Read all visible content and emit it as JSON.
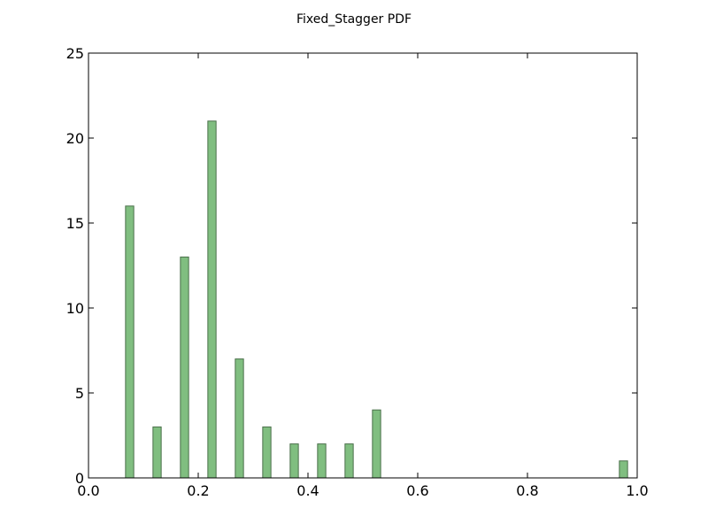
{
  "chart_data": {
    "type": "bar",
    "title": "Fixed_Stagger PDF",
    "xlabel": "",
    "ylabel": "",
    "xlim": [
      0.0,
      1.0
    ],
    "ylim": [
      0,
      25
    ],
    "x_ticks": [
      "0.0",
      "0.2",
      "0.4",
      "0.6",
      "0.8",
      "1.0"
    ],
    "x_tick_values": [
      0.0,
      0.2,
      0.4,
      0.6,
      0.8,
      1.0
    ],
    "y_ticks": [
      "0",
      "5",
      "10",
      "15",
      "20",
      "25"
    ],
    "y_tick_values": [
      0,
      5,
      10,
      15,
      20,
      25
    ],
    "bin_width": 0.05,
    "bar_width_fraction": 0.3,
    "bars": [
      {
        "x": 0.075,
        "value": 16
      },
      {
        "x": 0.125,
        "value": 3
      },
      {
        "x": 0.175,
        "value": 13
      },
      {
        "x": 0.225,
        "value": 21
      },
      {
        "x": 0.275,
        "value": 7
      },
      {
        "x": 0.325,
        "value": 3
      },
      {
        "x": 0.375,
        "value": 2
      },
      {
        "x": 0.425,
        "value": 2
      },
      {
        "x": 0.475,
        "value": 2
      },
      {
        "x": 0.525,
        "value": 4
      },
      {
        "x": 0.575,
        "value": 0
      },
      {
        "x": 0.625,
        "value": 0
      },
      {
        "x": 0.675,
        "value": 0
      },
      {
        "x": 0.725,
        "value": 0
      },
      {
        "x": 0.775,
        "value": 0
      },
      {
        "x": 0.825,
        "value": 0
      },
      {
        "x": 0.875,
        "value": 0
      },
      {
        "x": 0.925,
        "value": 0
      },
      {
        "x": 0.975,
        "value": 1
      }
    ],
    "bar_fill": "#80be80",
    "bar_edge": "#4a704a",
    "grid": false,
    "legend": "none"
  }
}
